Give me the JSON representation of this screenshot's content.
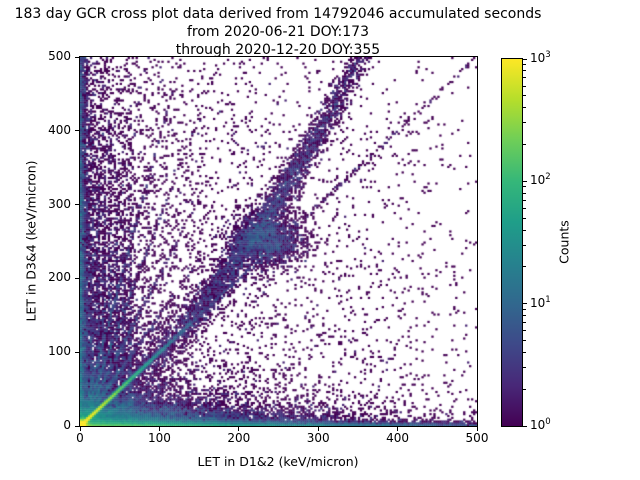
{
  "figure": {
    "background": "#ffffff",
    "title_lines": [
      "183 day GCR cross plot data derived from 14792046 accumulated seconds",
      "from 2020-06-21 DOY:173",
      "through 2020-12-20 DOY:355"
    ]
  },
  "chart_data": {
    "type": "heatmap",
    "subtype": "2d-histogram-scatter",
    "title": "183 day GCR cross plot data derived from 14792046 accumulated seconds from 2020-06-21 DOY:173 through 2020-12-20 DOY:355",
    "xlabel": "LET in D1&2 (keV/micron)",
    "ylabel": "LET in D3&4 (keV/micron)",
    "xlim": [
      0,
      500
    ],
    "ylim": [
      0,
      500
    ],
    "xticks": [
      0,
      100,
      200,
      300,
      400,
      500
    ],
    "yticks": [
      0,
      100,
      200,
      300,
      400,
      500
    ],
    "grid": false,
    "legend_position": "none",
    "colorbar": {
      "label": "Counts",
      "scale": "log",
      "min": 1,
      "max": 1000,
      "tick_exponents": [
        0,
        1,
        2,
        3
      ],
      "colormap": "viridis",
      "stops": [
        "#440154",
        "#482878",
        "#3e4989",
        "#31688e",
        "#26828e",
        "#1f9e89",
        "#35b779",
        "#6ece58",
        "#b5de2b",
        "#fde725"
      ]
    },
    "render": {
      "seed": 42,
      "bins": 200
    },
    "features": [
      {
        "name": "origin-hotspot",
        "type": "gauss2d",
        "n": 26000,
        "x0": 1.5,
        "y0": 1.5,
        "sx": 3.5,
        "sy": 3.5
      },
      {
        "name": "main-diagonal",
        "type": "diag",
        "n": 32000,
        "scale": 22,
        "slope": 1.0,
        "noise": 1.3
      },
      {
        "name": "main-diagonal-tail",
        "type": "diag",
        "n": 900,
        "scale": 170,
        "slope": 1.0,
        "noise": 2.5
      },
      {
        "name": "bottom-band-line",
        "type": "band-x",
        "n": 15000,
        "posScale": 150,
        "thick": 2.4
      },
      {
        "name": "bottom-band-spread",
        "type": "band-x",
        "n": 15000,
        "posScale": 85,
        "thick": 13
      },
      {
        "name": "left-edge-column",
        "type": "band-y",
        "n": 5200,
        "posScale": 420,
        "thick": 3.2
      },
      {
        "name": "left-zone-scatter",
        "type": "expexp",
        "n": 5200,
        "xScale": 32,
        "yScale": 320
      },
      {
        "name": "secondary-diagonal-band",
        "type": "curve",
        "n": 4600,
        "xMean": 225,
        "xSig": 85,
        "xMin": 55,
        "xMax": 370,
        "a": 0.00166,
        "b": 0.82,
        "noise": 16
      },
      {
        "name": "band-dense-blob",
        "type": "gauss2d",
        "n": 2100,
        "x0": 236,
        "y0": 252,
        "sx": 22,
        "sy": 19
      },
      {
        "name": "origin-fan-rays",
        "type": "rays",
        "slopes": [
          1.5,
          2.05,
          2.8,
          3.9,
          0.52
        ],
        "nPer": 650,
        "scale": 38,
        "noise": 2.2
      },
      {
        "name": "vertical-streaks",
        "type": "streaks",
        "xs": [
          15,
          23,
          30,
          38,
          46,
          55,
          63
        ],
        "nPer": 380,
        "yScale": 120,
        "noise": 1.4,
        "yMax": 430
      },
      {
        "name": "background-scatter",
        "type": "fade",
        "n": 15000,
        "xFade": 250,
        "yFade": 430
      }
    ]
  }
}
